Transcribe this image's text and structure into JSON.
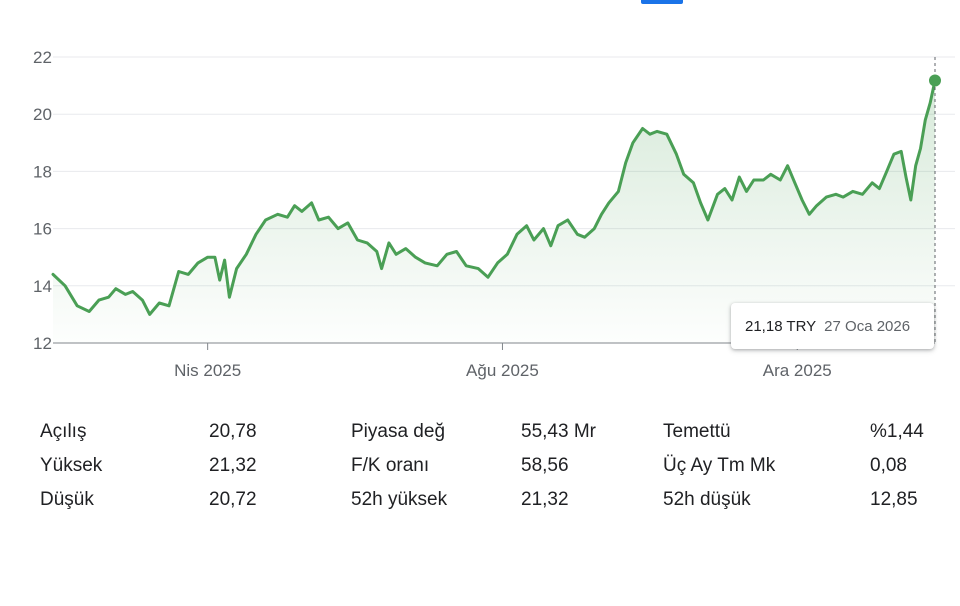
{
  "chart_data": {
    "type": "area",
    "title": "",
    "xlabel": "",
    "ylabel": "",
    "ylim": [
      12,
      22
    ],
    "yticks": [
      "12",
      "14",
      "16",
      "18",
      "20",
      "22"
    ],
    "xticks": [
      {
        "label": "Nis 2025",
        "date": "2025-04-01"
      },
      {
        "label": "Ağu 2025",
        "date": "2025-08-01"
      },
      {
        "label": "Ara 2025",
        "date": "2025-12-01"
      }
    ],
    "x_range": [
      "2025-01-27",
      "2026-01-27"
    ],
    "line_color": "#4a9f55",
    "grid": true,
    "series": [
      {
        "points": [
          [
            "2025-01-27",
            14.4
          ],
          [
            "2025-02-01",
            14.0
          ],
          [
            "2025-02-06",
            13.3
          ],
          [
            "2025-02-11",
            13.1
          ],
          [
            "2025-02-15",
            13.5
          ],
          [
            "2025-02-19",
            13.6
          ],
          [
            "2025-02-22",
            13.9
          ],
          [
            "2025-02-26",
            13.7
          ],
          [
            "2025-03-01",
            13.8
          ],
          [
            "2025-03-05",
            13.5
          ],
          [
            "2025-03-08",
            13.0
          ],
          [
            "2025-03-12",
            13.4
          ],
          [
            "2025-03-16",
            13.3
          ],
          [
            "2025-03-20",
            14.5
          ],
          [
            "2025-03-24",
            14.4
          ],
          [
            "2025-03-28",
            14.8
          ],
          [
            "2025-04-01",
            15.0
          ],
          [
            "2025-04-04",
            15.0
          ],
          [
            "2025-04-06",
            14.2
          ],
          [
            "2025-04-08",
            14.9
          ],
          [
            "2025-04-10",
            13.6
          ],
          [
            "2025-04-13",
            14.6
          ],
          [
            "2025-04-17",
            15.1
          ],
          [
            "2025-04-21",
            15.8
          ],
          [
            "2025-04-25",
            16.3
          ],
          [
            "2025-04-30",
            16.5
          ],
          [
            "2025-05-04",
            16.4
          ],
          [
            "2025-05-07",
            16.8
          ],
          [
            "2025-05-10",
            16.6
          ],
          [
            "2025-05-14",
            16.9
          ],
          [
            "2025-05-17",
            16.3
          ],
          [
            "2025-05-21",
            16.4
          ],
          [
            "2025-05-25",
            16.0
          ],
          [
            "2025-05-29",
            16.2
          ],
          [
            "2025-06-02",
            15.6
          ],
          [
            "2025-06-06",
            15.5
          ],
          [
            "2025-06-10",
            15.2
          ],
          [
            "2025-06-12",
            14.6
          ],
          [
            "2025-06-15",
            15.5
          ],
          [
            "2025-06-18",
            15.1
          ],
          [
            "2025-06-22",
            15.3
          ],
          [
            "2025-06-26",
            15.0
          ],
          [
            "2025-06-30",
            14.8
          ],
          [
            "2025-07-05",
            14.7
          ],
          [
            "2025-07-09",
            15.1
          ],
          [
            "2025-07-13",
            15.2
          ],
          [
            "2025-07-17",
            14.7
          ],
          [
            "2025-07-22",
            14.6
          ],
          [
            "2025-07-26",
            14.3
          ],
          [
            "2025-07-30",
            14.8
          ],
          [
            "2025-08-03",
            15.1
          ],
          [
            "2025-08-07",
            15.8
          ],
          [
            "2025-08-11",
            16.1
          ],
          [
            "2025-08-14",
            15.6
          ],
          [
            "2025-08-18",
            16.0
          ],
          [
            "2025-08-21",
            15.4
          ],
          [
            "2025-08-24",
            16.1
          ],
          [
            "2025-08-28",
            16.3
          ],
          [
            "2025-09-01",
            15.8
          ],
          [
            "2025-09-04",
            15.7
          ],
          [
            "2025-09-08",
            16.0
          ],
          [
            "2025-09-11",
            16.5
          ],
          [
            "2025-09-14",
            16.9
          ],
          [
            "2025-09-18",
            17.3
          ],
          [
            "2025-09-21",
            18.3
          ],
          [
            "2025-09-24",
            19.0
          ],
          [
            "2025-09-28",
            19.5
          ],
          [
            "2025-10-01",
            19.3
          ],
          [
            "2025-10-04",
            19.4
          ],
          [
            "2025-10-08",
            19.3
          ],
          [
            "2025-10-12",
            18.6
          ],
          [
            "2025-10-15",
            17.9
          ],
          [
            "2025-10-19",
            17.6
          ],
          [
            "2025-10-22",
            16.9
          ],
          [
            "2025-10-25",
            16.3
          ],
          [
            "2025-10-29",
            17.2
          ],
          [
            "2025-11-01",
            17.4
          ],
          [
            "2025-11-04",
            17.0
          ],
          [
            "2025-11-07",
            17.8
          ],
          [
            "2025-11-10",
            17.3
          ],
          [
            "2025-11-13",
            17.7
          ],
          [
            "2025-11-17",
            17.7
          ],
          [
            "2025-11-20",
            17.9
          ],
          [
            "2025-11-24",
            17.7
          ],
          [
            "2025-11-27",
            18.2
          ],
          [
            "2025-11-30",
            17.6
          ],
          [
            "2025-12-03",
            17.0
          ],
          [
            "2025-12-06",
            16.5
          ],
          [
            "2025-12-09",
            16.8
          ],
          [
            "2025-12-13",
            17.1
          ],
          [
            "2025-12-17",
            17.2
          ],
          [
            "2025-12-20",
            17.1
          ],
          [
            "2025-12-24",
            17.3
          ],
          [
            "2025-12-28",
            17.2
          ],
          [
            "2026-01-01",
            17.6
          ],
          [
            "2026-01-04",
            17.4
          ],
          [
            "2026-01-07",
            18.0
          ],
          [
            "2026-01-10",
            18.6
          ],
          [
            "2026-01-13",
            18.7
          ],
          [
            "2026-01-15",
            17.8
          ],
          [
            "2026-01-17",
            17.0
          ],
          [
            "2026-01-19",
            18.2
          ],
          [
            "2026-01-21",
            18.8
          ],
          [
            "2026-01-23",
            19.8
          ],
          [
            "2026-01-25",
            20.4
          ],
          [
            "2026-01-27",
            21.18
          ]
        ]
      }
    ],
    "tooltip": {
      "price": "21,18 TRY",
      "date": "27 Oca 2026"
    }
  },
  "stats": [
    [
      {
        "label": "Açılış",
        "value": "20,78"
      },
      {
        "label": "Piyasa değ",
        "value": "55,43 Mr"
      },
      {
        "label": "Temettü",
        "value": "%1,44"
      }
    ],
    [
      {
        "label": "Yüksek",
        "value": "21,32"
      },
      {
        "label": "F/K oranı",
        "value": "58,56"
      },
      {
        "label": "Üç Ay Tm Mk",
        "value": "0,08"
      }
    ],
    [
      {
        "label": "Düşük",
        "value": "20,72"
      },
      {
        "label": "52h yüksek",
        "value": "21,32"
      },
      {
        "label": "52h düşük",
        "value": "12,85"
      }
    ]
  ]
}
